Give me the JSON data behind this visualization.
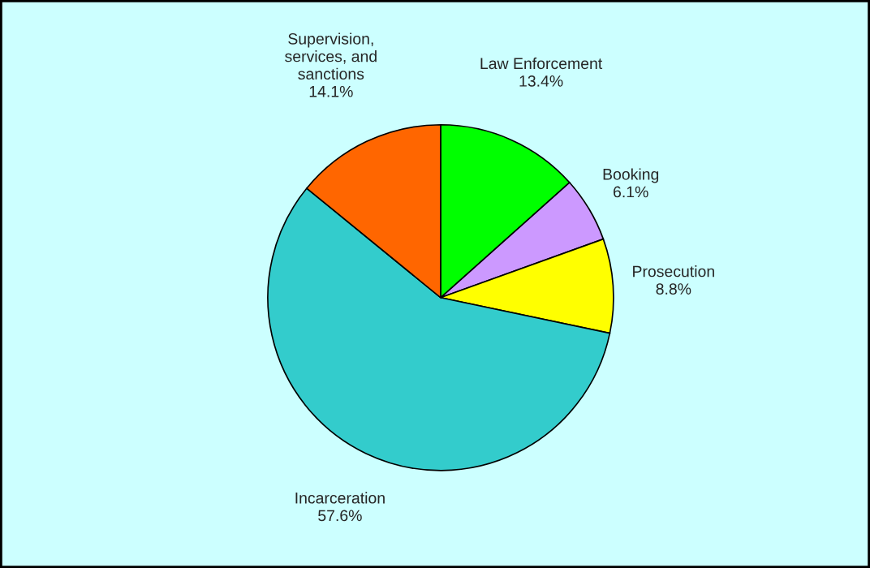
{
  "chart_data": {
    "type": "pie",
    "categories": [
      "Law Enforcement",
      "Booking",
      "Prosecution",
      "Incarceration",
      "Supervision,\nservices, and\nsanctions"
    ],
    "values": [
      13.4,
      6.1,
      8.8,
      57.6,
      14.1
    ],
    "colors": [
      "#00ff00",
      "#cc99ff",
      "#ffff00",
      "#33cccc",
      "#ff6600"
    ],
    "value_labels": [
      "13.4%",
      "6.1%",
      "8.8%",
      "57.6%",
      "14.1%"
    ],
    "legend": false
  }
}
